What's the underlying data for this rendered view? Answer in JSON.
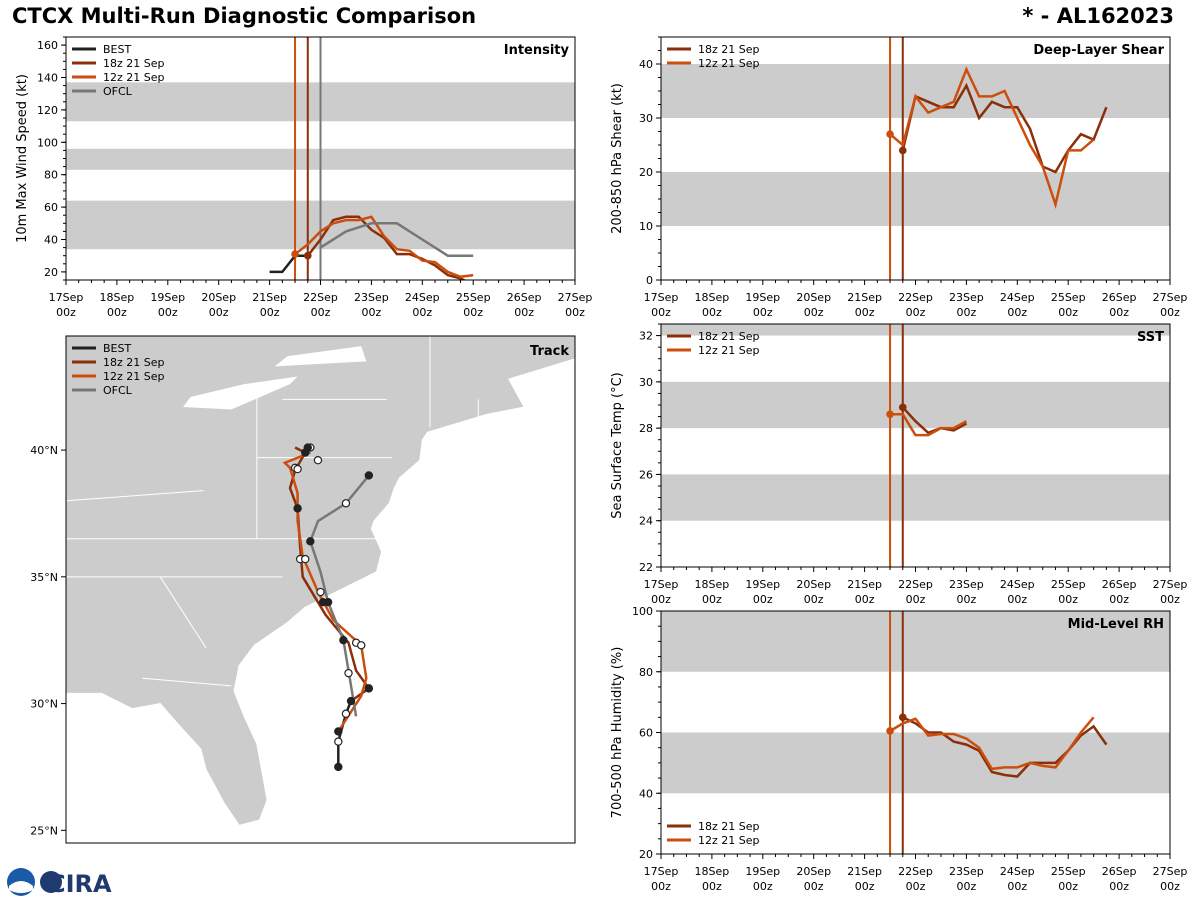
{
  "header": {
    "title": "CTCX Multi-Run Diagnostic Comparison",
    "storm_id": "* - AL162023"
  },
  "logo": {
    "text": "CIRA"
  },
  "colors": {
    "BEST": "#222222",
    "18z 21 Sep": "#8b2e0a",
    "12z 21 Sep": "#cc4e0c",
    "OFCL": "#777777",
    "band": "#cccccc"
  },
  "x_ticks": [
    "17Sep",
    "18Sep",
    "19Sep",
    "20Sep",
    "21Sep",
    "22Sep",
    "23Sep",
    "24Sep",
    "25Sep",
    "26Sep",
    "27Sep"
  ],
  "x_tick_sub": "00z",
  "chart_data": [
    {
      "id": "intensity",
      "type": "line",
      "title": "Intensity",
      "ylabel": "10m Max Wind Speed (kt)",
      "xlim": [
        0,
        10
      ],
      "ylim": [
        15,
        165
      ],
      "yticks": [
        20,
        40,
        60,
        80,
        100,
        120,
        140,
        160
      ],
      "bands": [
        [
          34,
          64
        ],
        [
          83,
          96
        ],
        [
          113,
          137
        ]
      ],
      "vlines": [
        {
          "x": 4.5,
          "series": "12z 21 Sep"
        },
        {
          "x": 4.75,
          "series": "18z 21 Sep"
        },
        {
          "x": 5.0,
          "series": "OFCL"
        }
      ],
      "series": [
        {
          "name": "BEST",
          "x": [
            4.0,
            4.25,
            4.5,
            4.75
          ],
          "y": [
            20,
            20,
            30,
            30
          ]
        },
        {
          "name": "18z 21 Sep",
          "x": [
            4.75,
            5.0,
            5.25,
            5.5,
            5.75,
            6.0,
            6.25,
            6.5,
            6.75,
            7.0,
            7.25,
            7.5,
            7.75,
            8.0
          ],
          "y": [
            30,
            40,
            52,
            54,
            54,
            46,
            41,
            31,
            31,
            28,
            24,
            18,
            16,
            12
          ]
        },
        {
          "name": "12z 21 Sep",
          "x": [
            4.5,
            4.75,
            5.0,
            5.25,
            5.5,
            5.75,
            6.0,
            6.25,
            6.5,
            6.75,
            7.0,
            7.25,
            7.5,
            7.75,
            8.0
          ],
          "y": [
            31,
            37,
            45,
            50,
            52,
            52,
            54,
            42,
            34,
            33,
            27,
            26,
            20,
            17,
            18
          ]
        },
        {
          "name": "OFCL",
          "x": [
            5.0,
            5.5,
            6.0,
            6.5,
            7.0,
            7.5,
            8.0
          ],
          "y": [
            35,
            45,
            50,
            50,
            40,
            30,
            30
          ]
        }
      ],
      "legend": [
        "BEST",
        "18z 21 Sep",
        "12z 21 Sep",
        "OFCL"
      ]
    },
    {
      "id": "shear",
      "type": "line",
      "title": "Deep-Layer Shear",
      "ylabel": "200-850 hPa Shear (kt)",
      "xlim": [
        0,
        10
      ],
      "ylim": [
        0,
        45
      ],
      "yticks": [
        0,
        10,
        20,
        30,
        40
      ],
      "bands": [
        [
          10,
          20
        ],
        [
          30,
          40
        ]
      ],
      "vlines": [
        {
          "x": 4.5,
          "series": "12z 21 Sep"
        },
        {
          "x": 4.75,
          "series": "18z 21 Sep"
        }
      ],
      "series": [
        {
          "name": "18z 21 Sep",
          "x": [
            4.75,
            5.0,
            5.25,
            5.5,
            5.75,
            6.0,
            6.25,
            6.5,
            6.75,
            7.0,
            7.25,
            7.5,
            7.75,
            8.0,
            8.25,
            8.5,
            8.75
          ],
          "y": [
            24,
            34,
            33,
            32,
            32,
            36,
            30,
            33,
            32,
            32,
            28,
            21,
            20,
            24,
            27,
            26,
            32
          ]
        },
        {
          "name": "12z 21 Sep",
          "x": [
            4.5,
            4.75,
            5.0,
            5.25,
            5.5,
            5.75,
            6.0,
            6.25,
            6.5,
            6.75,
            7.0,
            7.25,
            7.5,
            7.75,
            8.0,
            8.25,
            8.5
          ],
          "y": [
            27,
            25,
            34,
            31,
            32,
            33,
            39,
            34,
            34,
            35,
            30,
            25,
            21,
            14,
            24,
            24,
            26
          ]
        }
      ],
      "legend": [
        "18z 21 Sep",
        "12z 21 Sep"
      ]
    },
    {
      "id": "sst",
      "type": "line",
      "title": "SST",
      "ylabel": "Sea Surface Temp (°C)",
      "xlim": [
        0,
        10
      ],
      "ylim": [
        22,
        32.5
      ],
      "yticks": [
        22,
        24,
        26,
        28,
        30,
        32
      ],
      "bands": [
        [
          24,
          26
        ],
        [
          28,
          30
        ],
        [
          32,
          34
        ]
      ],
      "vlines": [
        {
          "x": 4.5,
          "series": "12z 21 Sep"
        },
        {
          "x": 4.75,
          "series": "18z 21 Sep"
        }
      ],
      "series": [
        {
          "name": "18z 21 Sep",
          "x": [
            4.75,
            5.0,
            5.25,
            5.5,
            5.75,
            6.0
          ],
          "y": [
            28.9,
            28.3,
            27.8,
            28.0,
            27.9,
            28.2
          ]
        },
        {
          "name": "12z 21 Sep",
          "x": [
            4.5,
            4.75,
            5.0,
            5.25,
            5.5,
            5.75,
            6.0
          ],
          "y": [
            28.6,
            28.6,
            27.7,
            27.7,
            28.0,
            28.0,
            28.3
          ]
        }
      ],
      "legend": [
        "18z 21 Sep",
        "12z 21 Sep"
      ]
    },
    {
      "id": "rh",
      "type": "line",
      "title": "Mid-Level RH",
      "ylabel": "700-500 hPa Humidity (%)",
      "xlim": [
        0,
        10
      ],
      "ylim": [
        20,
        100
      ],
      "yticks": [
        20,
        40,
        60,
        80,
        100
      ],
      "bands": [
        [
          40,
          60
        ],
        [
          80,
          100
        ]
      ],
      "vlines": [
        {
          "x": 4.5,
          "series": "12z 21 Sep"
        },
        {
          "x": 4.75,
          "series": "18z 21 Sep"
        }
      ],
      "series": [
        {
          "name": "18z 21 Sep",
          "x": [
            4.75,
            5.0,
            5.25,
            5.5,
            5.75,
            6.0,
            6.25,
            6.5,
            6.75,
            7.0,
            7.25,
            7.5,
            7.75,
            8.0,
            8.25,
            8.5,
            8.75
          ],
          "y": [
            65,
            63,
            60,
            60,
            57,
            56,
            54,
            47,
            46,
            45.5,
            50,
            50,
            50,
            54,
            59,
            62,
            56
          ]
        },
        {
          "name": "12z 21 Sep",
          "x": [
            4.5,
            4.75,
            5.0,
            5.25,
            5.5,
            5.75,
            6.0,
            6.25,
            6.5,
            6.75,
            7.0,
            7.25,
            7.5,
            7.75,
            8.0,
            8.25,
            8.5
          ],
          "y": [
            60.5,
            63,
            64.5,
            59,
            59.5,
            59.5,
            58,
            55,
            48,
            48.5,
            48.5,
            50,
            49,
            48.5,
            54,
            60,
            65
          ]
        }
      ],
      "legend": [
        "18z 21 Sep",
        "12z 21 Sep"
      ]
    },
    {
      "id": "track",
      "type": "map-track",
      "title": "Track",
      "lon_range": [
        -88,
        -68
      ],
      "lat_range": [
        24.5,
        44.5
      ],
      "lat_ticks": [
        "40°N",
        "35°N",
        "30°N",
        "25°N"
      ],
      "lat_tick_values": [
        40,
        35,
        30,
        25
      ],
      "legend": [
        "BEST",
        "18z 21 Sep",
        "12z 21 Sep",
        "OFCL"
      ],
      "series": [
        {
          "name": "BEST",
          "lon": [
            -77.3,
            -77.3,
            -77.0,
            -76.8
          ],
          "lat": [
            27.5,
            28.5,
            29.6,
            30.1
          ]
        },
        {
          "name": "18z 21 Sep",
          "lon": [
            -76.8,
            -76.1,
            -76.6,
            -76.9,
            -77.8,
            -78.7,
            -78.8,
            -78.9,
            -79.2,
            -79.0,
            -78.6,
            -79.0
          ],
          "lat": [
            30.1,
            30.6,
            31.3,
            32.4,
            33.5,
            35.0,
            36.2,
            37.7,
            38.5,
            39.2,
            39.9,
            40.1
          ]
        },
        {
          "name": "12z 21 Sep",
          "lon": [
            -77.3,
            -76.4,
            -76.2,
            -76.4,
            -77.5,
            -78.1,
            -78.7,
            -78.9,
            -78.9,
            -79.2,
            -79.4,
            -78.4
          ],
          "lat": [
            28.9,
            30.3,
            31.0,
            32.3,
            33.3,
            34.4,
            35.8,
            37.2,
            38.3,
            39.3,
            39.5,
            39.9
          ]
        },
        {
          "name": "OFCL",
          "lon": [
            -76.6,
            -76.9,
            -77.1,
            -77.7,
            -78.0,
            -78.4,
            -78.1,
            -77.0,
            -76.1
          ],
          "lat": [
            29.5,
            31.3,
            32.5,
            34.0,
            35.2,
            36.4,
            37.2,
            37.9,
            39.0
          ]
        }
      ],
      "markers": [
        {
          "series": "BEST",
          "lon": -77.3,
          "lat": 27.5,
          "open": false
        },
        {
          "series": "BEST",
          "lon": -77.3,
          "lat": 28.5,
          "open": true
        },
        {
          "series": "BEST",
          "lon": -77.0,
          "lat": 29.6,
          "open": true
        },
        {
          "series": "18z 21 Sep",
          "lon": -76.8,
          "lat": 30.1,
          "open": false
        },
        {
          "series": "18z 21 Sep",
          "lon": -76.1,
          "lat": 30.6,
          "open": false
        },
        {
          "series": "18z 21 Sep",
          "lon": -76.6,
          "lat": 32.4,
          "open": true
        },
        {
          "series": "18z 21 Sep",
          "lon": -78.9,
          "lat": 37.7,
          "open": false
        },
        {
          "series": "18z 21 Sep",
          "lon": -78.6,
          "lat": 39.9,
          "open": false
        },
        {
          "series": "12z 21 Sep",
          "lon": -77.3,
          "lat": 28.9,
          "open": false
        },
        {
          "series": "12z 21 Sep",
          "lon": -76.4,
          "lat": 32.3,
          "open": true
        },
        {
          "series": "12z 21 Sep",
          "lon": -78.8,
          "lat": 35.7,
          "open": true
        },
        {
          "series": "12z 21 Sep",
          "lon": -79.0,
          "lat": 39.3,
          "open": true
        },
        {
          "series": "12z 21 Sep",
          "lon": -78.4,
          "lat": 40.1,
          "open": true
        },
        {
          "series": "OFCL",
          "lon": -76.9,
          "lat": 31.2,
          "open": true
        },
        {
          "series": "OFCL",
          "lon": -77.7,
          "lat": 34.0,
          "open": false
        },
        {
          "series": "OFCL",
          "lon": -78.0,
          "lat": 34.4,
          "open": true
        },
        {
          "series": "OFCL",
          "lon": -78.4,
          "lat": 36.4,
          "open": false
        },
        {
          "series": "OFCL",
          "lon": -77.1,
          "lat": 32.5,
          "open": false
        },
        {
          "series": "OFCL",
          "lon": -77.0,
          "lat": 37.9,
          "open": true
        },
        {
          "series": "OFCL",
          "lon": -76.1,
          "lat": 39.0,
          "open": false
        },
        {
          "series": "18z 21 Sep",
          "lon": -77.9,
          "lat": 34.0,
          "open": false
        },
        {
          "series": "12z 21 Sep",
          "lon": -78.6,
          "lat": 35.7,
          "open": true
        },
        {
          "series": "18z 21 Sep",
          "lon": -78.9,
          "lat": 39.25,
          "open": true
        },
        {
          "series": "12z 21 Sep",
          "lon": -78.1,
          "lat": 39.6,
          "open": true
        },
        {
          "series": "18z 21 Sep",
          "lon": -78.5,
          "lat": 40.1,
          "open": false
        }
      ]
    }
  ]
}
